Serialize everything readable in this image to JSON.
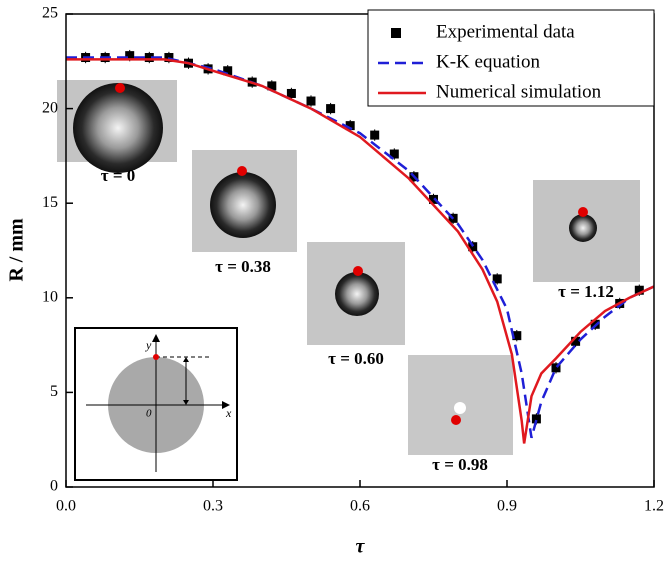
{
  "chart_data": {
    "type": "line",
    "x_label": "τ",
    "y_label": "R / mm",
    "xlim": [
      0,
      1.2
    ],
    "ylim": [
      0,
      25
    ],
    "xticks": [
      {
        "value": 0,
        "label": "0.0"
      },
      0.3,
      0.6,
      0.9,
      1.2
    ],
    "yticks": [
      0,
      5,
      10,
      15,
      20,
      25
    ],
    "legend_position": "top-right",
    "series": [
      {
        "name": "Experimental data",
        "style": "markers",
        "color": "#000000",
        "x": [
          0.04,
          0.08,
          0.13,
          0.17,
          0.21,
          0.25,
          0.29,
          0.33,
          0.38,
          0.42,
          0.46,
          0.5,
          0.54,
          0.58,
          0.63,
          0.67,
          0.71,
          0.75,
          0.79,
          0.83,
          0.88,
          0.92,
          0.96,
          1.0,
          1.04,
          1.08,
          1.13,
          1.17
        ],
        "values": [
          22.7,
          22.7,
          22.8,
          22.7,
          22.7,
          22.4,
          22.1,
          22.0,
          21.4,
          21.2,
          20.8,
          20.4,
          20.0,
          19.1,
          18.6,
          17.6,
          16.4,
          15.2,
          14.2,
          12.7,
          11.0,
          8.0,
          3.6,
          6.3,
          7.7,
          8.6,
          9.7,
          10.4
        ],
        "errors": [
          0.3,
          0.3,
          0.3,
          0.3,
          0.3,
          0.3,
          0.3,
          0.3,
          0.3,
          0.3,
          0.3,
          0.3,
          0.3,
          0.3,
          0.3,
          0.3,
          0.3,
          0.3,
          0.3,
          0.3,
          0.3,
          0.3,
          0.3,
          0.3,
          0.3,
          0.3,
          0.3,
          0.3
        ]
      },
      {
        "name": "K-K equation",
        "style": "dashed",
        "color": "#1f1fd6",
        "x": [
          0,
          0.1,
          0.2,
          0.3,
          0.4,
          0.5,
          0.6,
          0.7,
          0.8,
          0.85,
          0.9,
          0.93,
          0.95,
          0.97,
          1.0,
          1.05,
          1.1,
          1.15,
          1.2
        ],
        "values": [
          22.7,
          22.7,
          22.7,
          22.1,
          21.2,
          20.0,
          18.7,
          16.7,
          13.9,
          12.0,
          9.4,
          6.0,
          2.6,
          4.5,
          6.3,
          7.8,
          9.0,
          10.0,
          10.6
        ]
      },
      {
        "name": "Numerical simulation",
        "style": "solid",
        "color": "#e0191f",
        "x": [
          0,
          0.1,
          0.2,
          0.25,
          0.3,
          0.4,
          0.5,
          0.6,
          0.7,
          0.8,
          0.85,
          0.88,
          0.91,
          0.93,
          0.935,
          0.95,
          0.97,
          1.0,
          1.05,
          1.1,
          1.15,
          1.2
        ],
        "values": [
          22.6,
          22.6,
          22.6,
          22.4,
          22.0,
          21.2,
          20.0,
          18.5,
          16.3,
          13.5,
          11.5,
          9.8,
          7.0,
          3.5,
          2.3,
          4.8,
          6.0,
          6.8,
          8.2,
          9.3,
          10.0,
          10.6
        ]
      }
    ],
    "inset_photos": [
      {
        "label": "τ = 0"
      },
      {
        "label": "τ = 0.38"
      },
      {
        "label": "τ = 0.60"
      },
      {
        "label": "τ = 0.98"
      },
      {
        "label": "τ = 1.12"
      }
    ],
    "schematic": {
      "y_axis": "y",
      "x_axis": "x",
      "origin": "0"
    }
  }
}
